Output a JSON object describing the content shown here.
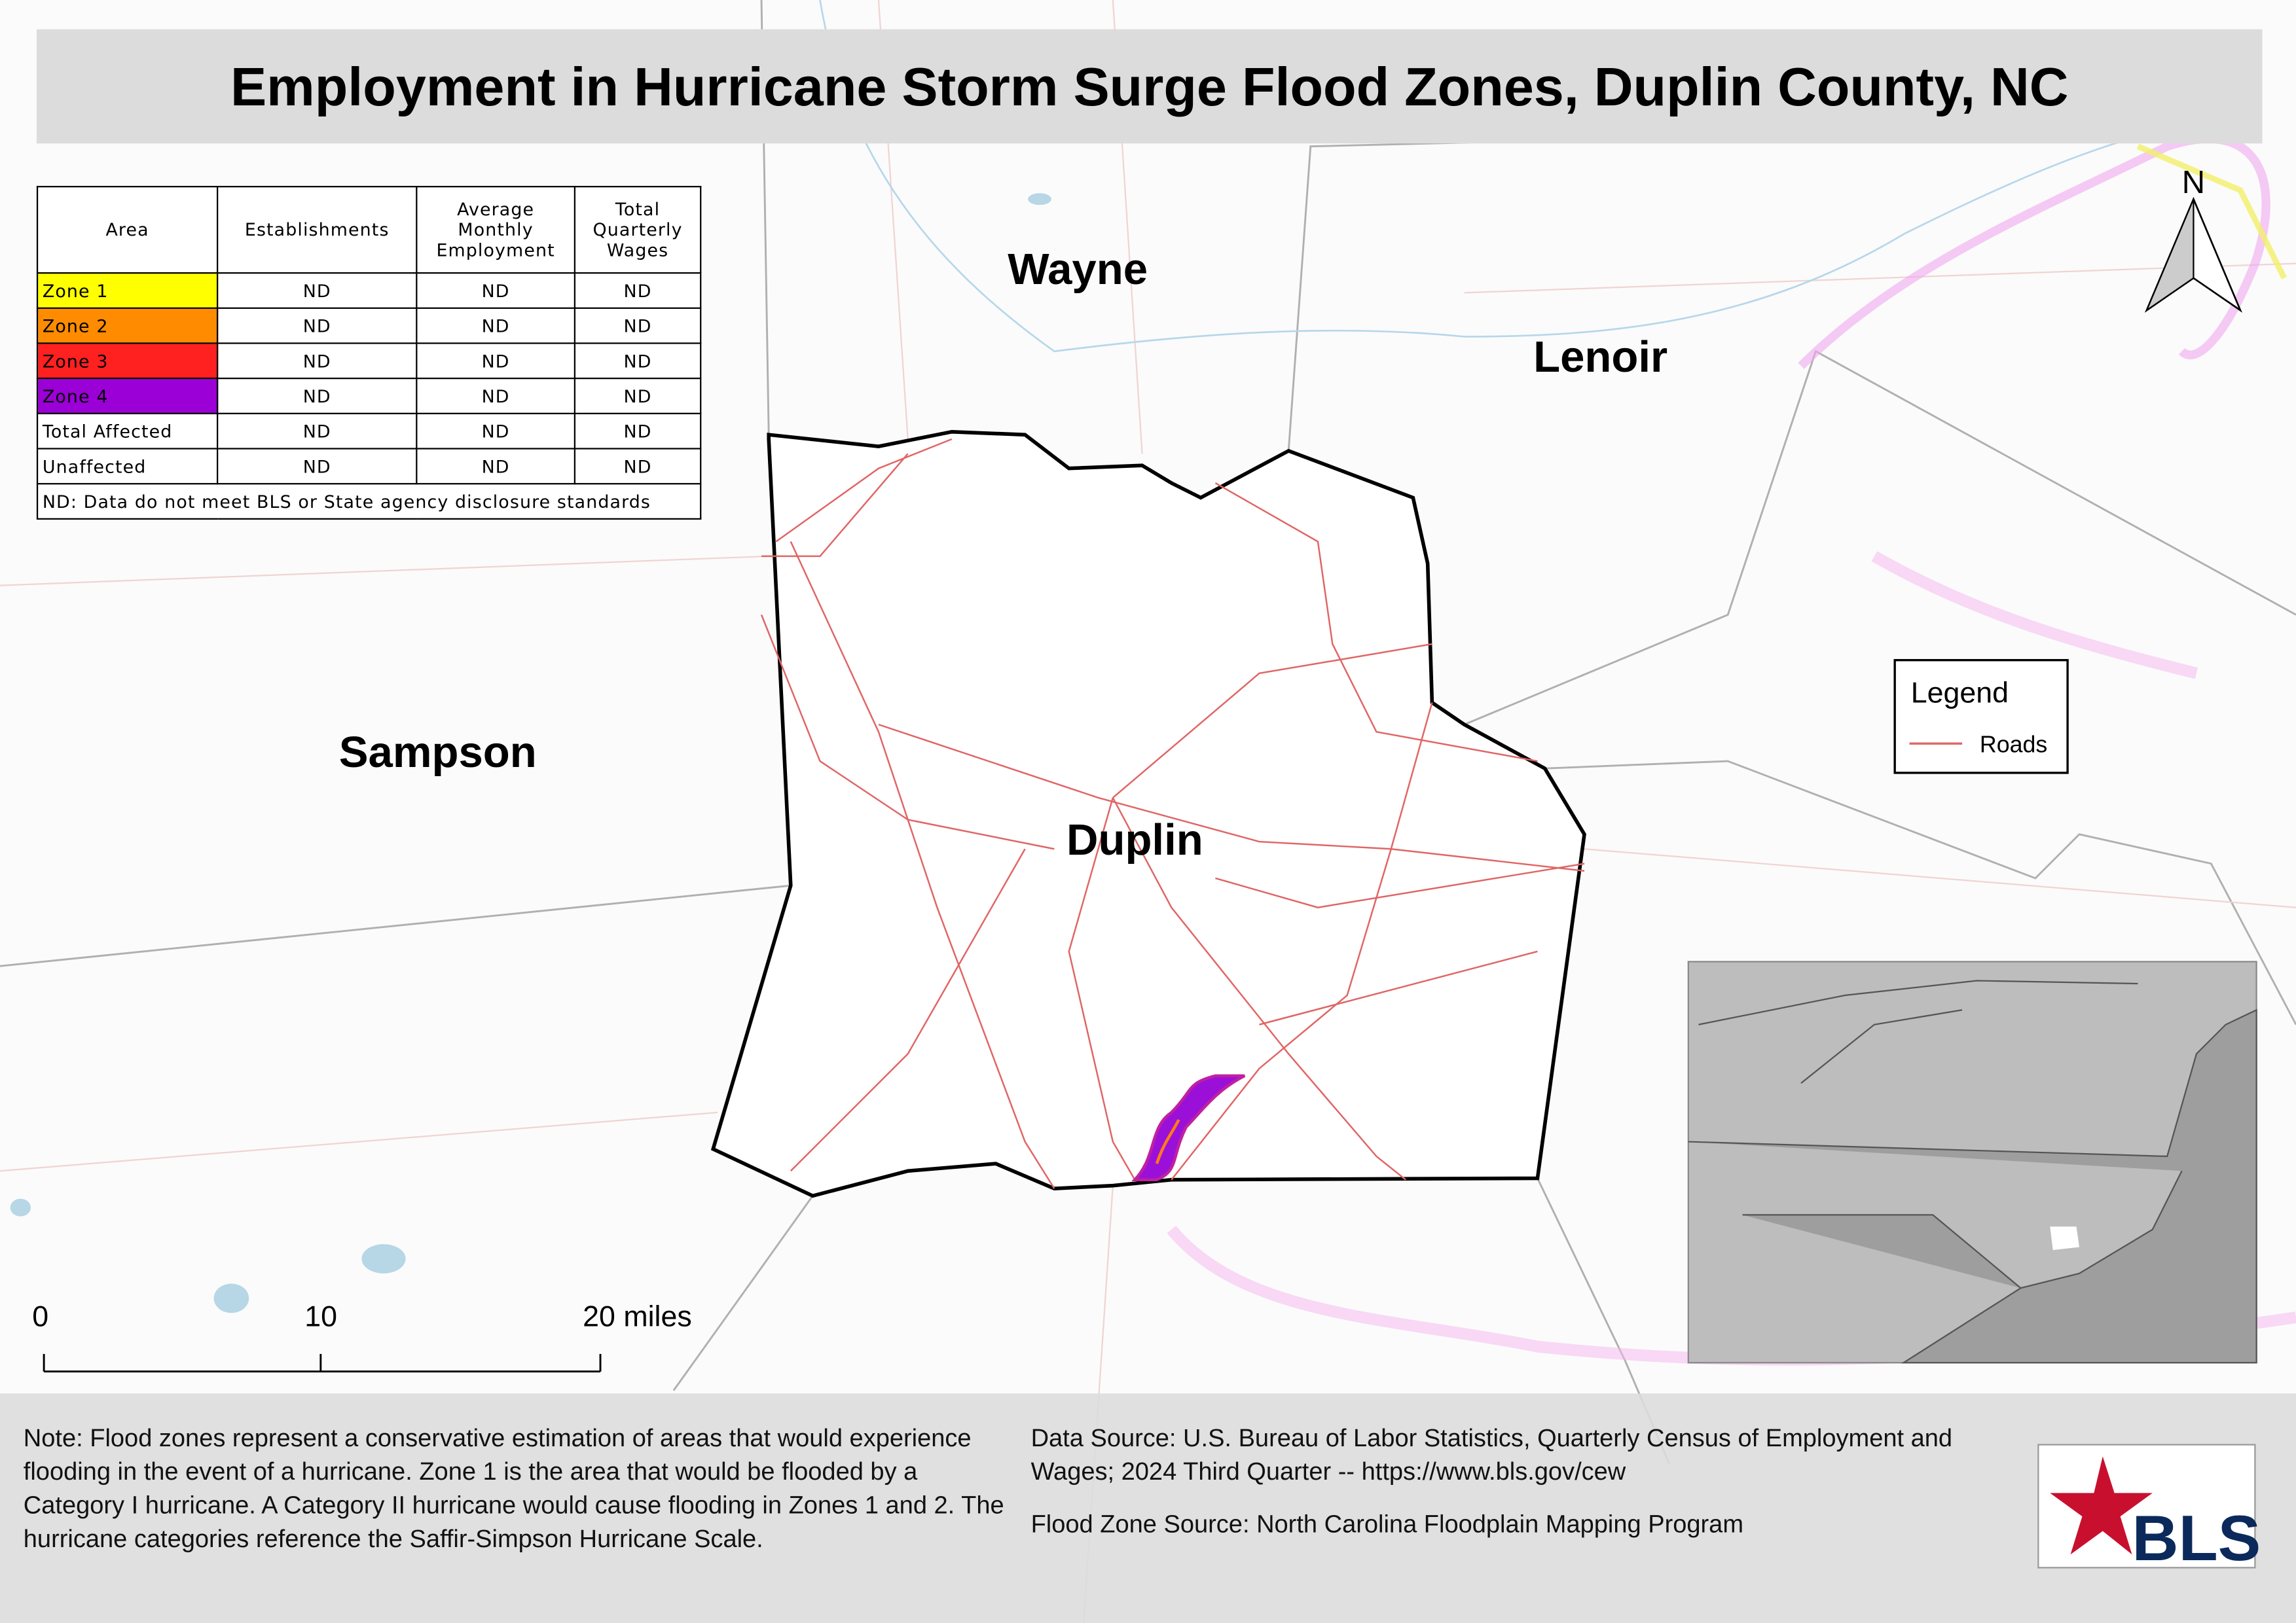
{
  "title": "Employment in Hurricane Storm Surge Flood Zones, Duplin County, NC",
  "table": {
    "header": [
      "Area",
      "Establishments",
      "Average Monthly Employment",
      "Total Quarterly Wages"
    ],
    "rows": [
      [
        "Zone 1",
        "ND",
        "ND",
        "ND"
      ],
      [
        "Zone 2",
        "ND",
        "ND",
        "ND"
      ],
      [
        "Zone 3",
        "ND",
        "ND",
        "ND"
      ],
      [
        "Zone 4",
        "ND",
        "ND",
        "ND"
      ],
      [
        "Total Affected",
        "ND",
        "ND",
        "ND"
      ],
      [
        "Unaffected",
        "ND",
        "ND",
        "ND"
      ]
    ],
    "footnote": "ND: Data do not meet BLS or State agency disclosure standards"
  },
  "counties": [
    "Wayne",
    "Lenoir",
    "Sampson",
    "Duplin"
  ],
  "legend": {
    "title": "Legend",
    "items": [
      "Roads"
    ]
  },
  "north": "N",
  "scale_bar": [
    "0",
    "10",
    "20 miles"
  ],
  "note": "Note: Flood zones represent a conservative estimation of areas that would experience flooding in the event of a hurricane. Zone 1 is the area that would be flooded by a Category I hurricane. A Category II hurricane would cause flooding in Zones 1 and 2. The hurricane categories reference the Saffir-Simpson Hurricane Scale.",
  "data_source": "Data Source: U.S. Bureau of Labor Statistics, Quarterly Census of Employment and Wages; 2024 Third Quarter -- https://www.bls.gov/cew",
  "flood_source": "Flood Zone Source: North Carolina Floodplain Mapping Program",
  "logo": "BLS"
}
